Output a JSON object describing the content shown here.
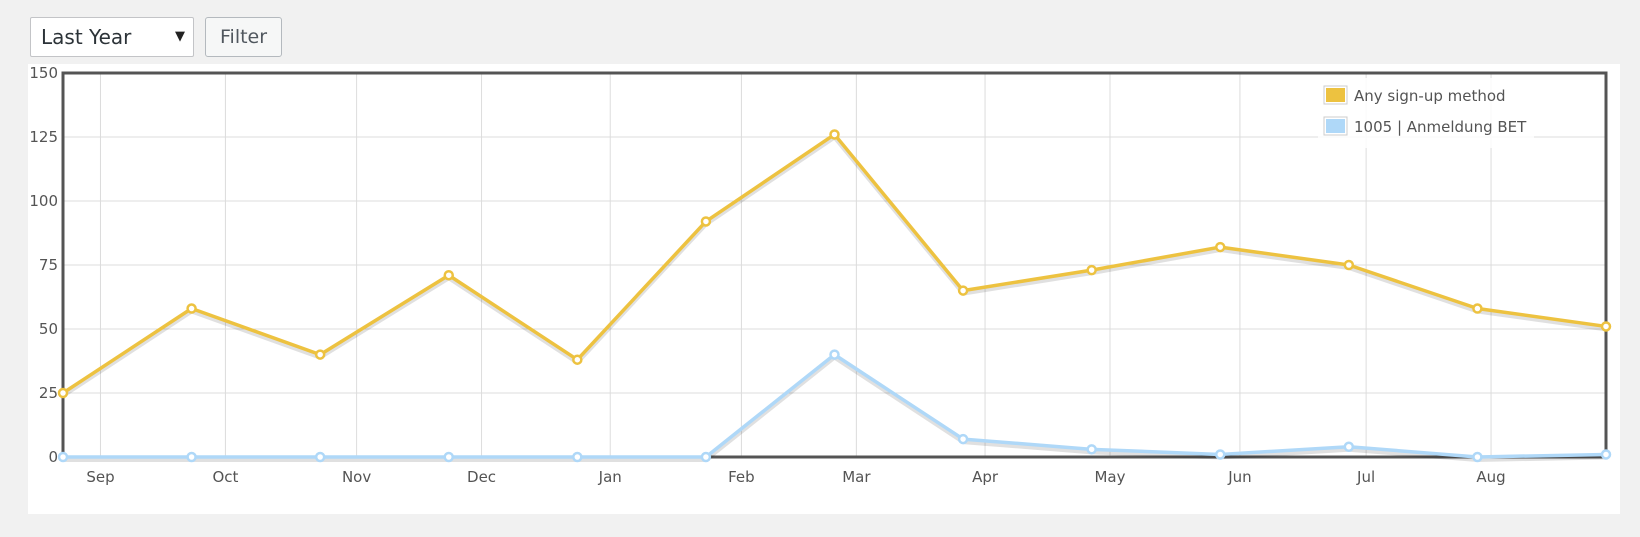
{
  "controls": {
    "range_select": {
      "selected": "Last Year",
      "arrow": "▼"
    },
    "filter_label": "Filter"
  },
  "chart_data": {
    "type": "line",
    "y_ticks": [
      "0",
      "25",
      "50",
      "75",
      "100",
      "125",
      "150"
    ],
    "ylim": [
      0,
      150
    ],
    "month_labels": [
      "Sep",
      "Oct",
      "Nov",
      "Dec",
      "Jan",
      "Feb",
      "Mar",
      "Apr",
      "May",
      "Jun",
      "Jul",
      "Aug"
    ],
    "grid": true,
    "legend_position": "top-right",
    "series": [
      {
        "name": "Any sign-up method",
        "color": "#edc240",
        "values": [
          25,
          58,
          40,
          71,
          38,
          92,
          126,
          65,
          73,
          82,
          75,
          58,
          51
        ]
      },
      {
        "name": "1005 | Anmeldung BET",
        "color": "#afd8f8",
        "values": [
          0,
          0,
          0,
          0,
          0,
          0,
          40,
          7,
          3,
          1,
          4,
          0,
          1
        ]
      }
    ]
  }
}
